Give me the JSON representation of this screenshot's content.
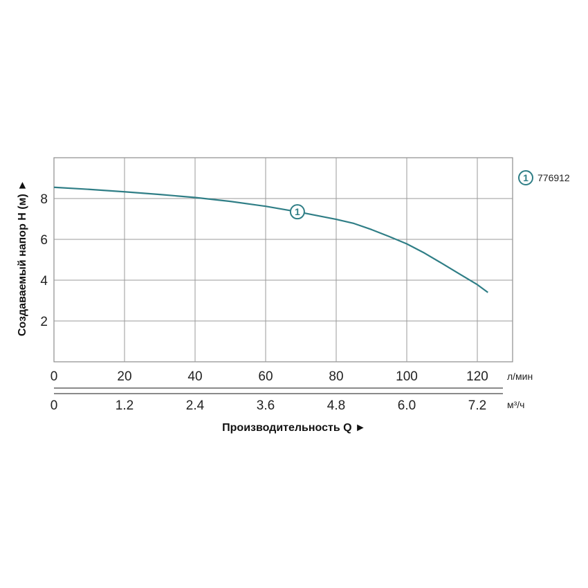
{
  "chart_data": {
    "type": "line",
    "ylabel": "Создаваемый напор H (м) ►",
    "xlabel": "Производительность Q ►",
    "x_primary_unit": "л/мин",
    "x_secondary_unit": "м³/ч",
    "xlim": [
      0,
      130
    ],
    "ylim": [
      0,
      10
    ],
    "grid": true,
    "x_ticks": [
      "0",
      "20",
      "40",
      "60",
      "80",
      "100",
      "120"
    ],
    "x_tick_values": [
      0,
      20,
      40,
      60,
      80,
      100,
      120
    ],
    "x2_ticks": [
      "0",
      "1.2",
      "2.4",
      "3.6",
      "4.8",
      "6.0",
      "7.2"
    ],
    "x2_tick_values": [
      0,
      1.2,
      2.4,
      3.6,
      4.8,
      6.0,
      7.2
    ],
    "y_ticks": [
      "2",
      "4",
      "6",
      "8"
    ],
    "y_tick_values": [
      2,
      4,
      6,
      8
    ],
    "legend_position": "top-right",
    "series": [
      {
        "name": "776912",
        "marker_label": "1",
        "color": "#2f7e86",
        "x": [
          0,
          10,
          20,
          30,
          40,
          50,
          60,
          70,
          80,
          85,
          90,
          95,
          100,
          105,
          110,
          115,
          120,
          123
        ],
        "y": [
          8.55,
          8.45,
          8.33,
          8.2,
          8.05,
          7.86,
          7.62,
          7.32,
          6.98,
          6.78,
          6.48,
          6.14,
          5.78,
          5.33,
          4.82,
          4.3,
          3.78,
          3.4
        ]
      }
    ]
  }
}
